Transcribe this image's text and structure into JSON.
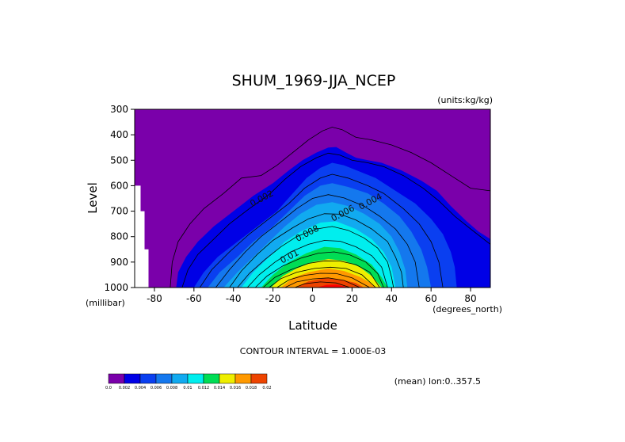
{
  "chart_data": {
    "type": "contour",
    "title": "SHUM_1969-JJA_NCEP",
    "units_label": "(units:kg/kg)",
    "xlabel": "Latitude",
    "ylabel": "Level",
    "x_unit_label": "(degrees_north)",
    "y_unit_label": "(millibar)",
    "xlim": [
      -90,
      90
    ],
    "ylim": [
      1000,
      300
    ],
    "x_ticks": [
      "-80",
      "-60",
      "-40",
      "-20",
      "0",
      "20",
      "40",
      "60",
      "80"
    ],
    "x_tick_values": [
      -80,
      -60,
      -40,
      -20,
      0,
      20,
      40,
      60,
      80
    ],
    "y_ticks": [
      "300",
      "400",
      "500",
      "600",
      "700",
      "800",
      "900",
      "1000"
    ],
    "y_tick_values": [
      300,
      400,
      500,
      600,
      700,
      800,
      900,
      1000
    ],
    "contour_interval_text": "CONTOUR INTERVAL = 1.000E-03",
    "footer_text": "(mean) lon:0..357.5",
    "contour_labels": [
      {
        "text": "0.002",
        "lat": -25,
        "level": 660
      },
      {
        "text": "0.004",
        "lat": 30,
        "level": 672
      },
      {
        "text": "0.006",
        "lat": 16,
        "level": 718
      },
      {
        "text": "0.008",
        "lat": -2,
        "level": 797
      },
      {
        "text": "0.01",
        "lat": -11,
        "level": 888
      }
    ],
    "colorbar": {
      "labels": [
        "0.0",
        "0.002",
        "0.004",
        "0.006",
        "0.008",
        "0.01",
        "0.012",
        "0.014",
        "0.016",
        "0.018",
        "0.02"
      ],
      "colors": [
        "#7a00aa",
        "#0000e6",
        "#0a3ff0",
        "#1478ee",
        "#11aaf0",
        "#00eeee",
        "#00dd55",
        "#eeee00",
        "#ff9900",
        "#ee4400",
        "#ff0000"
      ]
    },
    "filled_levels": [
      {
        "min": 0.001,
        "color": "#0000e6",
        "boundary": [
          [
            -69,
            1000
          ],
          [
            -68,
            940
          ],
          [
            -64,
            880
          ],
          [
            -58,
            820
          ],
          [
            -50,
            760
          ],
          [
            -40,
            700
          ],
          [
            -30,
            640
          ],
          [
            -20,
            590
          ],
          [
            -12,
            540
          ],
          [
            -5,
            500
          ],
          [
            2,
            470
          ],
          [
            8,
            450
          ],
          [
            12,
            448
          ],
          [
            17,
            470
          ],
          [
            22,
            490
          ],
          [
            28,
            500
          ],
          [
            35,
            510
          ],
          [
            45,
            540
          ],
          [
            55,
            580
          ],
          [
            63,
            620
          ],
          [
            70,
            680
          ],
          [
            78,
            740
          ],
          [
            84,
            780
          ],
          [
            90,
            810
          ],
          [
            90,
            1000
          ]
        ]
      },
      {
        "min": 0.002,
        "color": "#0a3ff0",
        "boundary": [
          [
            -60,
            1000
          ],
          [
            -55,
            940
          ],
          [
            -48,
            880
          ],
          [
            -38,
            820
          ],
          [
            -28,
            760
          ],
          [
            -18,
            700
          ],
          [
            -10,
            630
          ],
          [
            -3,
            570
          ],
          [
            4,
            530
          ],
          [
            10,
            510
          ],
          [
            16,
            520
          ],
          [
            24,
            545
          ],
          [
            32,
            570
          ],
          [
            42,
            620
          ],
          [
            52,
            670
          ],
          [
            60,
            730
          ],
          [
            66,
            790
          ],
          [
            70,
            860
          ],
          [
            72,
            920
          ],
          [
            73,
            1000
          ]
        ]
      },
      {
        "min": 0.003,
        "color": "#1478ee",
        "boundary": [
          [
            -53,
            1000
          ],
          [
            -47,
            940
          ],
          [
            -38,
            880
          ],
          [
            -30,
            820
          ],
          [
            -20,
            760
          ],
          [
            -12,
            700
          ],
          [
            -4,
            640
          ],
          [
            4,
            600
          ],
          [
            10,
            590
          ],
          [
            18,
            605
          ],
          [
            28,
            630
          ],
          [
            36,
            670
          ],
          [
            44,
            720
          ],
          [
            50,
            780
          ],
          [
            55,
            850
          ],
          [
            58,
            920
          ],
          [
            60,
            1000
          ]
        ]
      },
      {
        "min": 0.004,
        "color": "#11aaf0",
        "boundary": [
          [
            -45,
            1000
          ],
          [
            -38,
            940
          ],
          [
            -30,
            880
          ],
          [
            -22,
            820
          ],
          [
            -14,
            760
          ],
          [
            -6,
            710
          ],
          [
            2,
            675
          ],
          [
            10,
            665
          ],
          [
            18,
            680
          ],
          [
            26,
            710
          ],
          [
            34,
            750
          ],
          [
            40,
            800
          ],
          [
            44,
            860
          ],
          [
            47,
            930
          ],
          [
            48,
            1000
          ]
        ]
      },
      {
        "min": 0.006,
        "color": "#00eeee",
        "boundary": [
          [
            -36,
            1000
          ],
          [
            -30,
            940
          ],
          [
            -22,
            880
          ],
          [
            -14,
            820
          ],
          [
            -6,
            780
          ],
          [
            4,
            745
          ],
          [
            12,
            740
          ],
          [
            22,
            770
          ],
          [
            30,
            810
          ],
          [
            36,
            860
          ],
          [
            40,
            920
          ],
          [
            42,
            1000
          ]
        ]
      },
      {
        "min": 0.009,
        "color": "#00dd55",
        "boundary": [
          [
            -26,
            1000
          ],
          [
            -20,
            950
          ],
          [
            -12,
            900
          ],
          [
            -3,
            865
          ],
          [
            6,
            840
          ],
          [
            14,
            845
          ],
          [
            22,
            870
          ],
          [
            30,
            910
          ],
          [
            35,
            960
          ],
          [
            38,
            1000
          ]
        ]
      },
      {
        "min": 0.012,
        "color": "#eeee00",
        "boundary": [
          [
            -21,
            1000
          ],
          [
            -15,
            955
          ],
          [
            -8,
            925
          ],
          [
            0,
            900
          ],
          [
            8,
            888
          ],
          [
            16,
            895
          ],
          [
            24,
            920
          ],
          [
            30,
            955
          ],
          [
            35,
            1000
          ]
        ]
      },
      {
        "min": 0.014,
        "color": "#ff9900",
        "boundary": [
          [
            -16,
            1000
          ],
          [
            -10,
            962
          ],
          [
            -2,
            940
          ],
          [
            8,
            925
          ],
          [
            16,
            935
          ],
          [
            24,
            958
          ],
          [
            30,
            985
          ],
          [
            32,
            1000
          ]
        ]
      },
      {
        "min": 0.016,
        "color": "#ee4400",
        "boundary": [
          [
            -8,
            1000
          ],
          [
            -2,
            975
          ],
          [
            6,
            963
          ],
          [
            14,
            968
          ],
          [
            22,
            982
          ],
          [
            26,
            1000
          ]
        ]
      },
      {
        "min": 0.018,
        "color": "#ff0000",
        "boundary": [
          [
            2,
            1000
          ],
          [
            7,
            990
          ],
          [
            12,
            988
          ],
          [
            16,
            995
          ],
          [
            18,
            1000
          ]
        ]
      }
    ],
    "contour_lines": [
      [
        [
          -72,
          1000
        ],
        [
          -71,
          900
        ],
        [
          -68,
          820
        ],
        [
          -62,
          750
        ],
        [
          -55,
          690
        ],
        [
          -45,
          630
        ],
        [
          -36,
          570
        ],
        [
          -26,
          560
        ],
        [
          -18,
          520
        ],
        [
          -10,
          470
        ],
        [
          -2,
          420
        ],
        [
          5,
          385
        ],
        [
          10,
          370
        ],
        [
          15,
          380
        ],
        [
          22,
          410
        ],
        [
          30,
          420
        ],
        [
          40,
          440
        ],
        [
          50,
          470
        ],
        [
          60,
          510
        ],
        [
          70,
          560
        ],
        [
          80,
          610
        ],
        [
          90,
          620
        ]
      ],
      [
        [
          -66,
          1000
        ],
        [
          -63,
          930
        ],
        [
          -58,
          870
        ],
        [
          -50,
          810
        ],
        [
          -42,
          750
        ],
        [
          -32,
          690
        ],
        [
          -22,
          635
        ],
        [
          -14,
          575
        ],
        [
          -6,
          525
        ],
        [
          2,
          490
        ],
        [
          8,
          472
        ],
        [
          14,
          480
        ],
        [
          20,
          500
        ],
        [
          28,
          510
        ],
        [
          36,
          525
        ],
        [
          46,
          560
        ],
        [
          56,
          610
        ],
        [
          64,
          660
        ],
        [
          72,
          720
        ],
        [
          80,
          770
        ],
        [
          90,
          830
        ]
      ],
      [
        [
          -57,
          1000
        ],
        [
          -51,
          930
        ],
        [
          -42,
          860
        ],
        [
          -32,
          790
        ],
        [
          -22,
          730
        ],
        [
          -12,
          670
        ],
        [
          -4,
          610
        ],
        [
          4,
          570
        ],
        [
          10,
          555
        ],
        [
          18,
          570
        ],
        [
          28,
          600
        ],
        [
          36,
          630
        ],
        [
          46,
          690
        ],
        [
          54,
          750
        ],
        [
          60,
          820
        ],
        [
          64,
          900
        ],
        [
          66,
          1000
        ]
      ],
      [
        [
          -49,
          1000
        ],
        [
          -42,
          930
        ],
        [
          -34,
          860
        ],
        [
          -26,
          800
        ],
        [
          -16,
          740
        ],
        [
          -8,
          690
        ],
        [
          0,
          650
        ],
        [
          8,
          635
        ],
        [
          16,
          648
        ],
        [
          26,
          680
        ],
        [
          34,
          720
        ],
        [
          42,
          770
        ],
        [
          48,
          830
        ],
        [
          52,
          900
        ],
        [
          54,
          1000
        ]
      ],
      [
        [
          -42,
          1000
        ],
        [
          -36,
          935
        ],
        [
          -28,
          870
        ],
        [
          -20,
          815
        ],
        [
          -10,
          765
        ],
        [
          -2,
          730
        ],
        [
          6,
          710
        ],
        [
          14,
          712
        ],
        [
          22,
          735
        ],
        [
          30,
          770
        ],
        [
          38,
          820
        ],
        [
          42,
          880
        ],
        [
          45,
          940
        ],
        [
          46,
          1000
        ]
      ],
      [
        [
          -38,
          1000
        ],
        [
          -32,
          945
        ],
        [
          -24,
          890
        ],
        [
          -16,
          840
        ],
        [
          -8,
          800
        ],
        [
          2,
          770
        ],
        [
          10,
          760
        ],
        [
          18,
          775
        ],
        [
          26,
          805
        ],
        [
          33,
          845
        ],
        [
          38,
          900
        ],
        [
          40,
          960
        ],
        [
          41,
          1000
        ]
      ],
      [
        [
          -33,
          1000
        ],
        [
          -27,
          950
        ],
        [
          -19,
          900
        ],
        [
          -11,
          860
        ],
        [
          -2,
          830
        ],
        [
          6,
          815
        ],
        [
          14,
          818
        ],
        [
          22,
          840
        ],
        [
          30,
          875
        ],
        [
          35,
          920
        ],
        [
          38,
          1000
        ]
      ],
      [
        [
          -29,
          1000
        ],
        [
          -23,
          955
        ],
        [
          -15,
          915
        ],
        [
          -6,
          885
        ],
        [
          3,
          865
        ],
        [
          11,
          860
        ],
        [
          19,
          872
        ],
        [
          27,
          900
        ],
        [
          33,
          945
        ],
        [
          36,
          1000
        ]
      ],
      [
        [
          -25,
          1000
        ],
        [
          -19,
          960
        ],
        [
          -11,
          930
        ],
        [
          -2,
          905
        ],
        [
          6,
          895
        ],
        [
          14,
          896
        ],
        [
          22,
          910
        ],
        [
          29,
          940
        ],
        [
          34,
          1000
        ]
      ],
      [
        [
          -22,
          1000
        ],
        [
          -16,
          965
        ],
        [
          -8,
          940
        ],
        [
          1,
          925
        ],
        [
          9,
          920
        ],
        [
          17,
          925
        ],
        [
          25,
          950
        ],
        [
          32,
          1000
        ]
      ],
      [
        [
          -18,
          1000
        ],
        [
          -12,
          970
        ],
        [
          -4,
          952
        ],
        [
          4,
          944
        ],
        [
          12,
          945
        ],
        [
          20,
          962
        ],
        [
          29,
          1000
        ]
      ],
      [
        [
          -14,
          1000
        ],
        [
          -8,
          978
        ],
        [
          0,
          966
        ],
        [
          8,
          962
        ],
        [
          16,
          972
        ],
        [
          24,
          1000
        ]
      ],
      [
        [
          -9,
          1000
        ],
        [
          -4,
          985
        ],
        [
          4,
          978
        ],
        [
          12,
          982
        ],
        [
          19,
          1000
        ]
      ]
    ],
    "missing_region": [
      [
        -90,
        600
      ],
      [
        -87,
        600
      ],
      [
        -87,
        700
      ],
      [
        -85,
        700
      ],
      [
        -85,
        850
      ],
      [
        -83,
        850
      ],
      [
        -83,
        1000
      ],
      [
        -90,
        1000
      ]
    ]
  }
}
